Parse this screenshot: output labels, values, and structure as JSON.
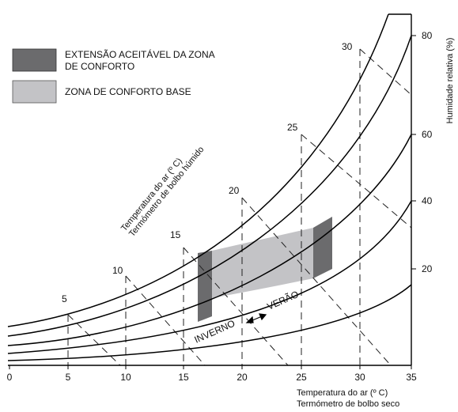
{
  "legend": {
    "extended_line1": "EXTENSÃO ACEITÁVEL DA ZONA",
    "extended_line2": "DE CONFORTO",
    "base": "ZONA DE CONFORTO BASE"
  },
  "x_axis": {
    "label_line1": "Temperatura do ar (º C)",
    "label_line2": "Termómetro de bolbo seco",
    "ticks": [
      "0",
      "5",
      "10",
      "15",
      "20",
      "25",
      "30",
      "35"
    ]
  },
  "rh_axis": {
    "label": "Humidade relativa (%)",
    "ticks": [
      "80",
      "60",
      "40",
      "20"
    ]
  },
  "wet_bulb": {
    "label_line1": "Temperatura do ar (º C)",
    "label_line2": "Termómetro de bolbo húmido",
    "ticks": [
      "5",
      "10",
      "15",
      "20",
      "25",
      "30"
    ]
  },
  "season": {
    "winter": "INVERNO",
    "summer": "VERÃO"
  },
  "colors": {
    "extended_zone": "#6b6b6d",
    "base_zone": "#c3c3c6",
    "line": "#000000"
  }
}
